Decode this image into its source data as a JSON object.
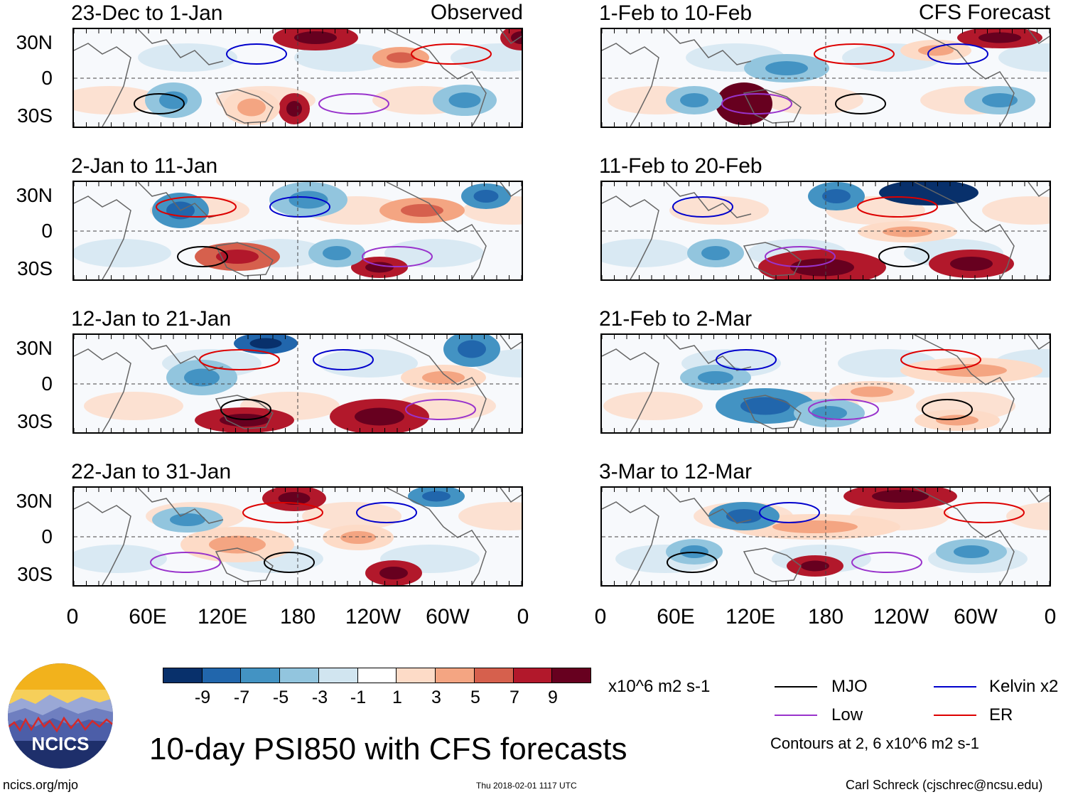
{
  "header": {
    "left_label": "Observed",
    "right_label": "CFS Forecast"
  },
  "panels": {
    "observed": [
      {
        "period": "23-Dec to 1-Jan"
      },
      {
        "period": "2-Jan to 11-Jan"
      },
      {
        "period": "12-Jan to 21-Jan"
      },
      {
        "period": "22-Jan to 31-Jan"
      }
    ],
    "forecast": [
      {
        "period": "1-Feb to 10-Feb"
      },
      {
        "period": "11-Feb to 20-Feb"
      },
      {
        "period": "21-Feb to 2-Mar"
      },
      {
        "period": "3-Mar to 12-Mar"
      }
    ]
  },
  "axes": {
    "lat_labels": [
      "30N",
      "0",
      "30S"
    ],
    "lon_labels": [
      "0",
      "60E",
      "120E",
      "180",
      "120W",
      "60W",
      "0"
    ]
  },
  "colorbar": {
    "ticks": [
      "-9",
      "-7",
      "-5",
      "-3",
      "-1",
      "1",
      "3",
      "5",
      "7",
      "9"
    ],
    "units": "x10^6 m2 s-1",
    "colors": [
      "#08306b",
      "#2166ac",
      "#4393c3",
      "#92c5de",
      "#d1e5f0",
      "#ffffff",
      "#fddbc7",
      "#f4a582",
      "#d6604d",
      "#b2182b",
      "#67001f"
    ]
  },
  "legend": {
    "items": [
      {
        "label": "MJO",
        "color": "#000000"
      },
      {
        "label": "Kelvin x2",
        "color": "#0000cc"
      },
      {
        "label": "Low",
        "color": "#9933cc"
      },
      {
        "label": "ER",
        "color": "#dd0000"
      }
    ],
    "contour_note": "Contours at 2, 6 x10^6 m2 s-1"
  },
  "footer": {
    "title": "10-day PSI850 with CFS forecasts",
    "logo_text": "NCICS",
    "url": "ncics.org/mjo",
    "timestamp": "Thu 2018-02-01 1117 UTC",
    "credit": "Carl Schreck (cjschrec@ncsu.edu)"
  }
}
